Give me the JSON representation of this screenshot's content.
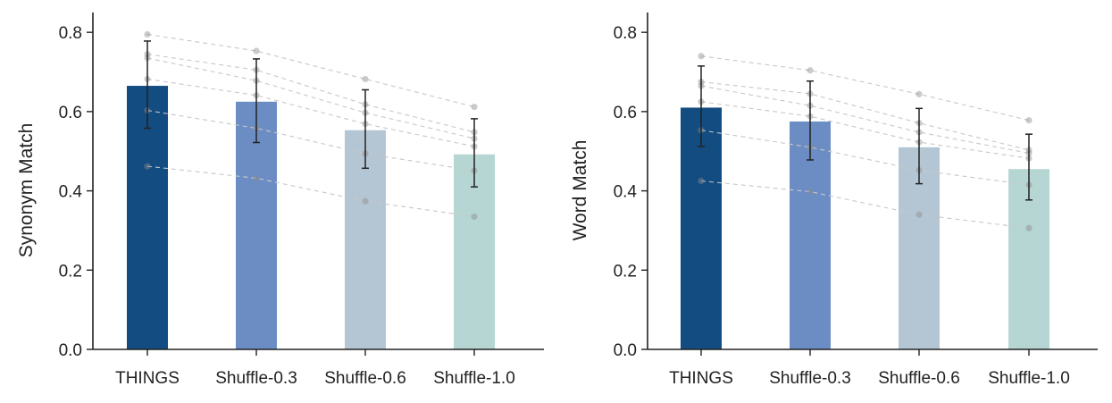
{
  "chart_data": [
    {
      "type": "bar",
      "categories": [
        "THINGS",
        "Shuffle-0.3",
        "Shuffle-0.6",
        "Shuffle-1.0"
      ],
      "values": [
        0.665,
        0.625,
        0.553,
        0.492
      ],
      "errors": [
        [
          0.558,
          0.778
        ],
        [
          0.522,
          0.733
        ],
        [
          0.457,
          0.655
        ],
        [
          0.41,
          0.582
        ]
      ],
      "colors": [
        "#124C80",
        "#6B8DC4",
        "#B4C6D4",
        "#B6D6D4"
      ],
      "subjects": [
        [
          0.795,
          0.753,
          0.682,
          0.612
        ],
        [
          0.745,
          0.705,
          0.618,
          0.548
        ],
        [
          0.735,
          0.678,
          0.597,
          0.532
        ],
        [
          0.682,
          0.641,
          0.569,
          0.512
        ],
        [
          0.603,
          0.558,
          0.494,
          0.451
        ],
        [
          0.462,
          0.432,
          0.374,
          0.335
        ]
      ],
      "title": "",
      "xlabel": "",
      "ylabel": "Synonym Match",
      "ylim": [
        0,
        0.85
      ],
      "yticks": [
        0.0,
        0.2,
        0.4,
        0.6,
        0.8
      ],
      "ytick_labels": [
        "0.0",
        "0.2",
        "0.4",
        "0.6",
        "0.8"
      ]
    },
    {
      "type": "bar",
      "categories": [
        "THINGS",
        "Shuffle-0.3",
        "Shuffle-0.6",
        "Shuffle-1.0"
      ],
      "values": [
        0.61,
        0.575,
        0.51,
        0.455
      ],
      "errors": [
        [
          0.512,
          0.715
        ],
        [
          0.478,
          0.677
        ],
        [
          0.418,
          0.608
        ],
        [
          0.377,
          0.543
        ]
      ],
      "colors": [
        "#124C80",
        "#6B8DC4",
        "#B4C6D4",
        "#B6D6D4"
      ],
      "subjects": [
        [
          0.74,
          0.704,
          0.644,
          0.578
        ],
        [
          0.675,
          0.645,
          0.571,
          0.503
        ],
        [
          0.665,
          0.615,
          0.548,
          0.495
        ],
        [
          0.625,
          0.588,
          0.523,
          0.482
        ],
        [
          0.553,
          0.51,
          0.452,
          0.415
        ],
        [
          0.425,
          0.398,
          0.34,
          0.306
        ]
      ],
      "title": "",
      "xlabel": "",
      "ylabel": "Word Match",
      "ylim": [
        0,
        0.85
      ],
      "yticks": [
        0.0,
        0.2,
        0.4,
        0.6,
        0.8
      ],
      "ytick_labels": [
        "0.0",
        "0.2",
        "0.4",
        "0.6",
        "0.8"
      ]
    }
  ]
}
